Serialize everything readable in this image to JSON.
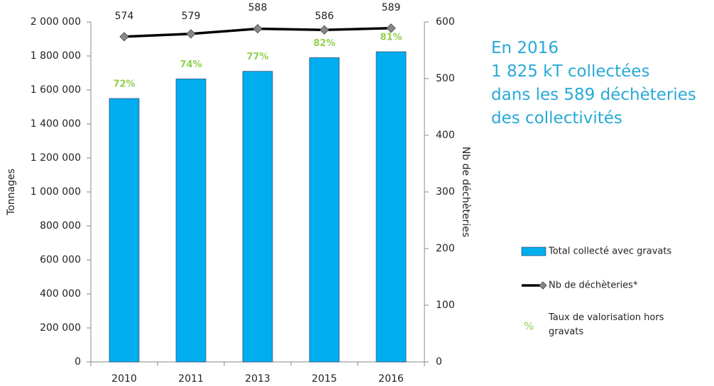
{
  "chart_data": {
    "type": "bar",
    "categories": [
      "2010",
      "2011",
      "2013",
      "2015",
      "2016"
    ],
    "series": [
      {
        "name": "Total collecté avec gravats",
        "type": "bar",
        "color": "#00adef",
        "values": [
          1550000,
          1665000,
          1710000,
          1790000,
          1825000
        ]
      },
      {
        "name": "Nb de déchèteries*",
        "type": "line",
        "axis": "y2",
        "color": "#000000",
        "values": [
          574,
          579,
          588,
          586,
          589
        ]
      },
      {
        "name": "Taux de valorisation hors gravats",
        "type": "label",
        "symbol": "%",
        "color": "#92d050",
        "values": [
          72,
          74,
          77,
          82,
          81
        ],
        "value_labels": [
          "72%",
          "74%",
          "77%",
          "82%",
          "81%"
        ]
      }
    ],
    "ylabel": "Tonnages",
    "y2label": "Nb de déchèteries",
    "ylim": [
      0,
      2000000
    ],
    "yticks": [
      0,
      {
        "value": 200000,
        "label": "200 000"
      },
      {
        "value": 400000,
        "label": "400 000"
      },
      {
        "value": 600000,
        "label": "600 000"
      },
      {
        "value": 800000,
        "label": "800 000"
      },
      {
        "value": 1000000,
        "label": "1 000 000"
      },
      {
        "value": 1200000,
        "label": "1 200 000"
      },
      {
        "value": 1400000,
        "label": "1 400 000"
      },
      {
        "value": 1600000,
        "label": "1 600 000"
      },
      {
        "value": 1800000,
        "label": "1 800 000"
      },
      {
        "value": 2000000,
        "label": "2 000 000"
      }
    ],
    "y2lim": [
      0,
      600
    ],
    "y2ticks": [
      0,
      100,
      200,
      300,
      400,
      500,
      600
    ],
    "annotations": [
      "En 2016",
      "1 825 kT collectées",
      "dans les 589 déchèteries",
      "des collectivités"
    ]
  }
}
